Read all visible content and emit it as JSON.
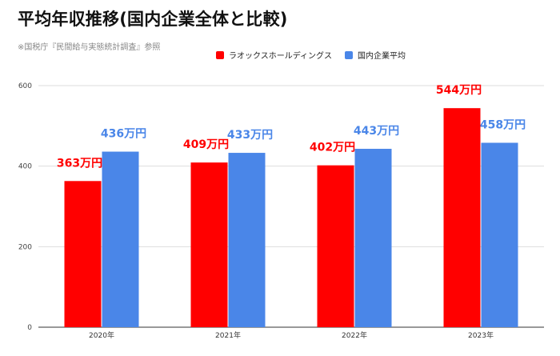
{
  "title": "平均年収推移(国内企業全体と比較)",
  "subtitle": "※国税庁『民間給与実態統計調査』参照",
  "colors": {
    "series1": "#ff0000",
    "series2": "#4a86e8",
    "grid": "#dddddd",
    "axis": "#333333"
  },
  "chart_data": {
    "type": "bar",
    "categories": [
      "2020年",
      "2021年",
      "2022年",
      "2023年"
    ],
    "series": [
      {
        "name": "ラオックスホールディングス",
        "values": [
          363,
          409,
          402,
          544
        ],
        "labels": [
          "363万円",
          "409万円",
          "402万円",
          "544万円"
        ]
      },
      {
        "name": "国内企業平均",
        "values": [
          436,
          433,
          443,
          458
        ],
        "labels": [
          "436万円",
          "433万円",
          "443万円",
          "458万円"
        ]
      }
    ],
    "ylim": [
      0,
      600
    ],
    "yticks": [
      "0",
      "200",
      "400",
      "600"
    ],
    "grid": true,
    "legend": "top-center"
  }
}
